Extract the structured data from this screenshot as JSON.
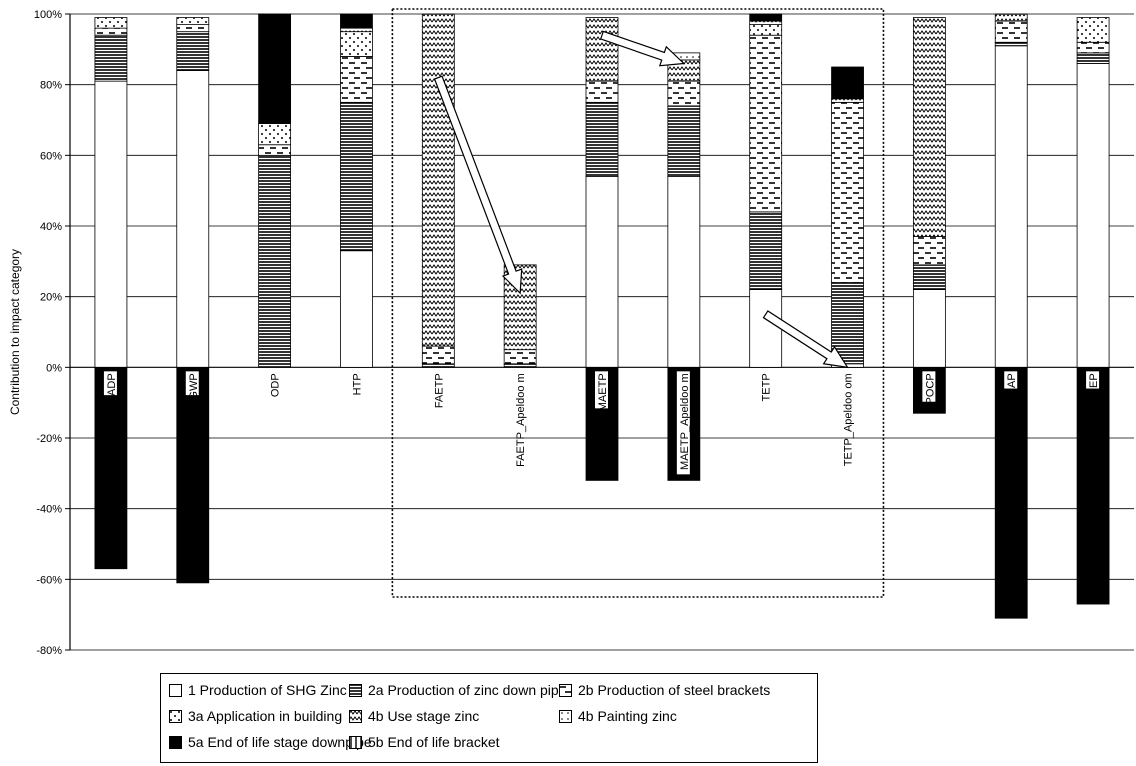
{
  "chart_data": {
    "type": "bar",
    "stacked": true,
    "ylabel": "Contribution to impact category",
    "ylim": [
      -80,
      100
    ],
    "yticks": [
      "-80%",
      "-60%",
      "-40%",
      "-20%",
      "0%",
      "20%",
      "40%",
      "60%",
      "80%",
      "100%"
    ],
    "grid": "horizontal",
    "legend_position": "bottom",
    "categories": [
      "ADP",
      "GWP",
      "ODP",
      "HTP",
      "FAETP",
      "FAETP_Apeldoo m",
      "MAETP",
      "MAETP_Apeldoo m",
      "TETP",
      "TETP_Apeldoo om",
      "POCP",
      "AP",
      "EP"
    ],
    "highlighted_group": [
      "FAETP",
      "FAETP_Apeldoo m",
      "MAETP",
      "MAETP_Apeldoo m",
      "TETP",
      "TETP_Apeldoo om"
    ],
    "series": [
      {
        "name": "1   Production of SHG Zinc",
        "pattern": "white",
        "values": [
          81,
          84,
          0,
          33,
          0,
          0,
          54,
          54,
          22,
          1,
          22,
          91,
          86
        ]
      },
      {
        "name": "2a Production of zinc down pipe",
        "pattern": "hlines",
        "values": [
          13,
          11,
          60,
          42,
          1,
          1,
          21,
          20,
          22,
          23,
          7,
          1,
          3
        ]
      },
      {
        "name": "2b Production of steel brackets",
        "pattern": "dashes",
        "values": [
          2,
          2,
          3,
          13,
          5,
          4,
          6,
          7,
          50,
          51,
          8,
          6,
          3
        ]
      },
      {
        "name": "3a Application in building",
        "pattern": "dots",
        "values": [
          3,
          2,
          6,
          7,
          0,
          0,
          0,
          0,
          3,
          0,
          0,
          0,
          7
        ]
      },
      {
        "name": "4b Use stage zinc",
        "pattern": "zigzag",
        "values": [
          0,
          0,
          0,
          1,
          94,
          24,
          18,
          6,
          1,
          1,
          62,
          2,
          0
        ]
      },
      {
        "name": "4b Painting zinc",
        "pattern": "lightdots",
        "values": [
          0,
          0,
          0,
          0,
          0,
          0,
          0,
          2,
          0,
          0,
          0,
          0,
          0
        ]
      },
      {
        "name": "5a End of life stage downpipe",
        "pattern": "black",
        "values": [
          -57,
          -61,
          31,
          4,
          0,
          0,
          -32,
          -32,
          2,
          9,
          -13,
          -71,
          -67
        ]
      },
      {
        "name": "5b End of life bracket",
        "pattern": "vlines",
        "values": [
          0,
          0,
          0,
          0,
          0,
          0,
          0,
          0,
          0,
          0,
          0,
          0,
          0
        ]
      }
    ],
    "annotations": [
      {
        "type": "arrow",
        "from": "FAETP",
        "to": "FAETP_Apeldoo m"
      },
      {
        "type": "arrow",
        "from": "MAETP",
        "to": "MAETP_Apeldoo m"
      },
      {
        "type": "arrow",
        "from": "TETP",
        "to": "TETP_Apeldoo om"
      }
    ]
  }
}
